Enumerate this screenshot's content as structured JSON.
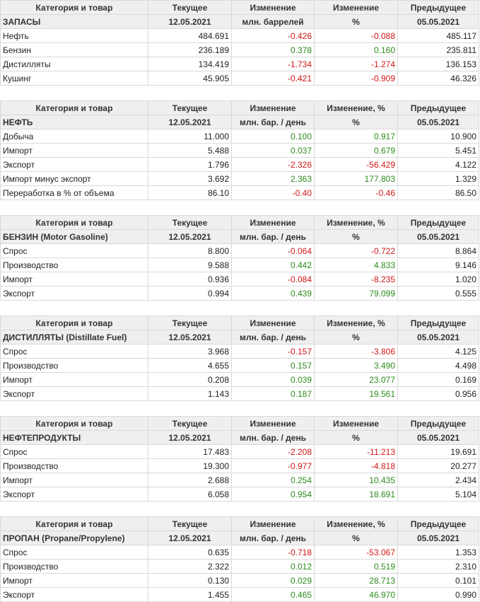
{
  "colors": {
    "positive": "#2e8b1e",
    "negative": "#d01818",
    "header_bg": "#efefef",
    "border": "#d9d9d9"
  },
  "tables": [
    {
      "id": "zapasy",
      "header1": [
        "Категория и товар",
        "Текущее",
        "Изменение",
        "Изменение",
        "Предыдущее"
      ],
      "header2": [
        "ЗАПАСЫ",
        "12.05.2021",
        "млн. баррелей",
        "%",
        "05.05.2021"
      ],
      "rows": [
        {
          "name": "Нефть",
          "current": "484.691",
          "change": "-0.426",
          "change_pct": "-0.088",
          "previous": "485.117"
        },
        {
          "name": "Бензин",
          "current": "236.189",
          "change": "0.378",
          "change_pct": "0.160",
          "previous": "235.811"
        },
        {
          "name": "Дистилляты",
          "current": "134.419",
          "change": "-1.734",
          "change_pct": "-1.274",
          "previous": "136.153"
        },
        {
          "name": "Кушинг",
          "current": "45.905",
          "change": "-0.421",
          "change_pct": "-0.909",
          "previous": "46.326"
        }
      ]
    },
    {
      "id": "neft",
      "header1": [
        "Категория и товар",
        "Текущее",
        "Изменение",
        "Изменение, %",
        "Предыдущее"
      ],
      "header2": [
        "НЕФТЬ",
        "12.05.2021",
        "млн. бар. / день",
        "%",
        "05.05.2021"
      ],
      "rows": [
        {
          "name": "Добыча",
          "current": "11.000",
          "change": "0.100",
          "change_pct": "0.917",
          "previous": "10.900"
        },
        {
          "name": "Импорт",
          "current": "5.488",
          "change": "0.037",
          "change_pct": "0.679",
          "previous": "5.451"
        },
        {
          "name": "Экспорт",
          "current": "1.796",
          "change": "-2.326",
          "change_pct": "-56.429",
          "previous": "4.122"
        },
        {
          "name": "Импорт минус экспорт",
          "current": "3.692",
          "change": "2.363",
          "change_pct": "177.803",
          "previous": "1.329"
        },
        {
          "name": "Переработка в % от объема",
          "current": "86.10",
          "change": "-0.40",
          "change_pct": "-0.46",
          "previous": "86.50"
        }
      ]
    },
    {
      "id": "benzin",
      "header1": [
        "Категория и товар",
        "Текущее",
        "Изменение",
        "Изменение, %",
        "Предыдущее"
      ],
      "header2": [
        "БЕНЗИН (Motor Gasoline)",
        "12.05.2021",
        "млн. бар. / день",
        "%",
        "05.05.2021"
      ],
      "rows": [
        {
          "name": "Спрос",
          "current": "8.800",
          "change": "-0.064",
          "change_pct": "-0.722",
          "previous": "8.864"
        },
        {
          "name": "Производство",
          "current": "9.588",
          "change": "0.442",
          "change_pct": "4.833",
          "previous": "9.146"
        },
        {
          "name": "Импорт",
          "current": "0.936",
          "change": "-0.084",
          "change_pct": "-8.235",
          "previous": "1.020"
        },
        {
          "name": "Экспорт",
          "current": "0.994",
          "change": "0.439",
          "change_pct": "79.099",
          "previous": "0.555"
        }
      ]
    },
    {
      "id": "distillyaty",
      "header1": [
        "Категория и товар",
        "Текущее",
        "Изменение",
        "Изменение, %",
        "Предыдущее"
      ],
      "header2": [
        "ДИСТИЛЛЯТЫ (Distillate Fuel)",
        "12.05.2021",
        "млн. бар. / день",
        "%",
        "05.05.2021"
      ],
      "rows": [
        {
          "name": "Спрос",
          "current": "3.968",
          "change": "-0.157",
          "change_pct": "-3.806",
          "previous": "4.125"
        },
        {
          "name": "Производство",
          "current": "4.655",
          "change": "0.157",
          "change_pct": "3.490",
          "previous": "4.498"
        },
        {
          "name": "Импорт",
          "current": "0.208",
          "change": "0.039",
          "change_pct": "23.077",
          "previous": "0.169"
        },
        {
          "name": "Экспорт",
          "current": "1.143",
          "change": "0.187",
          "change_pct": "19.561",
          "previous": "0.956"
        }
      ]
    },
    {
      "id": "nefteprodukty",
      "header1": [
        "Категория и товар",
        "Текущее",
        "Изменение",
        "Изменение",
        "Предыдущее"
      ],
      "header2": [
        "НЕФТЕПРОДУКТЫ",
        "12.05.2021",
        "млн. бар. / день",
        "%",
        "05.05.2021"
      ],
      "rows": [
        {
          "name": "Спрос",
          "current": "17.483",
          "change": "-2.208",
          "change_pct": "-11.213",
          "previous": "19.691"
        },
        {
          "name": "Производство",
          "current": "19.300",
          "change": "-0.977",
          "change_pct": "-4.818",
          "previous": "20.277"
        },
        {
          "name": "Импорт",
          "current": "2.688",
          "change": "0.254",
          "change_pct": "10.435",
          "previous": "2.434"
        },
        {
          "name": "Экспорт",
          "current": "6.058",
          "change": "0.954",
          "change_pct": "18.691",
          "previous": "5.104"
        }
      ]
    },
    {
      "id": "propan",
      "header1": [
        "Категория и товар",
        "Текущее",
        "Изменение",
        "Изменение, %",
        "Предыдущее"
      ],
      "header2": [
        "ПРОПАН (Propane/Propylene)",
        "12.05.2021",
        "млн. бар. / день",
        "%",
        "05.05.2021"
      ],
      "rows": [
        {
          "name": "Спрос",
          "current": "0.635",
          "change": "-0.718",
          "change_pct": "-53.067",
          "previous": "1.353"
        },
        {
          "name": "Производство",
          "current": "2.322",
          "change": "0.012",
          "change_pct": "0.519",
          "previous": "2.310"
        },
        {
          "name": "Импорт",
          "current": "0.130",
          "change": "0.029",
          "change_pct": "28.713",
          "previous": "0.101"
        },
        {
          "name": "Экспорт",
          "current": "1.455",
          "change": "0.465",
          "change_pct": "46.970",
          "previous": "0.990"
        }
      ]
    }
  ]
}
